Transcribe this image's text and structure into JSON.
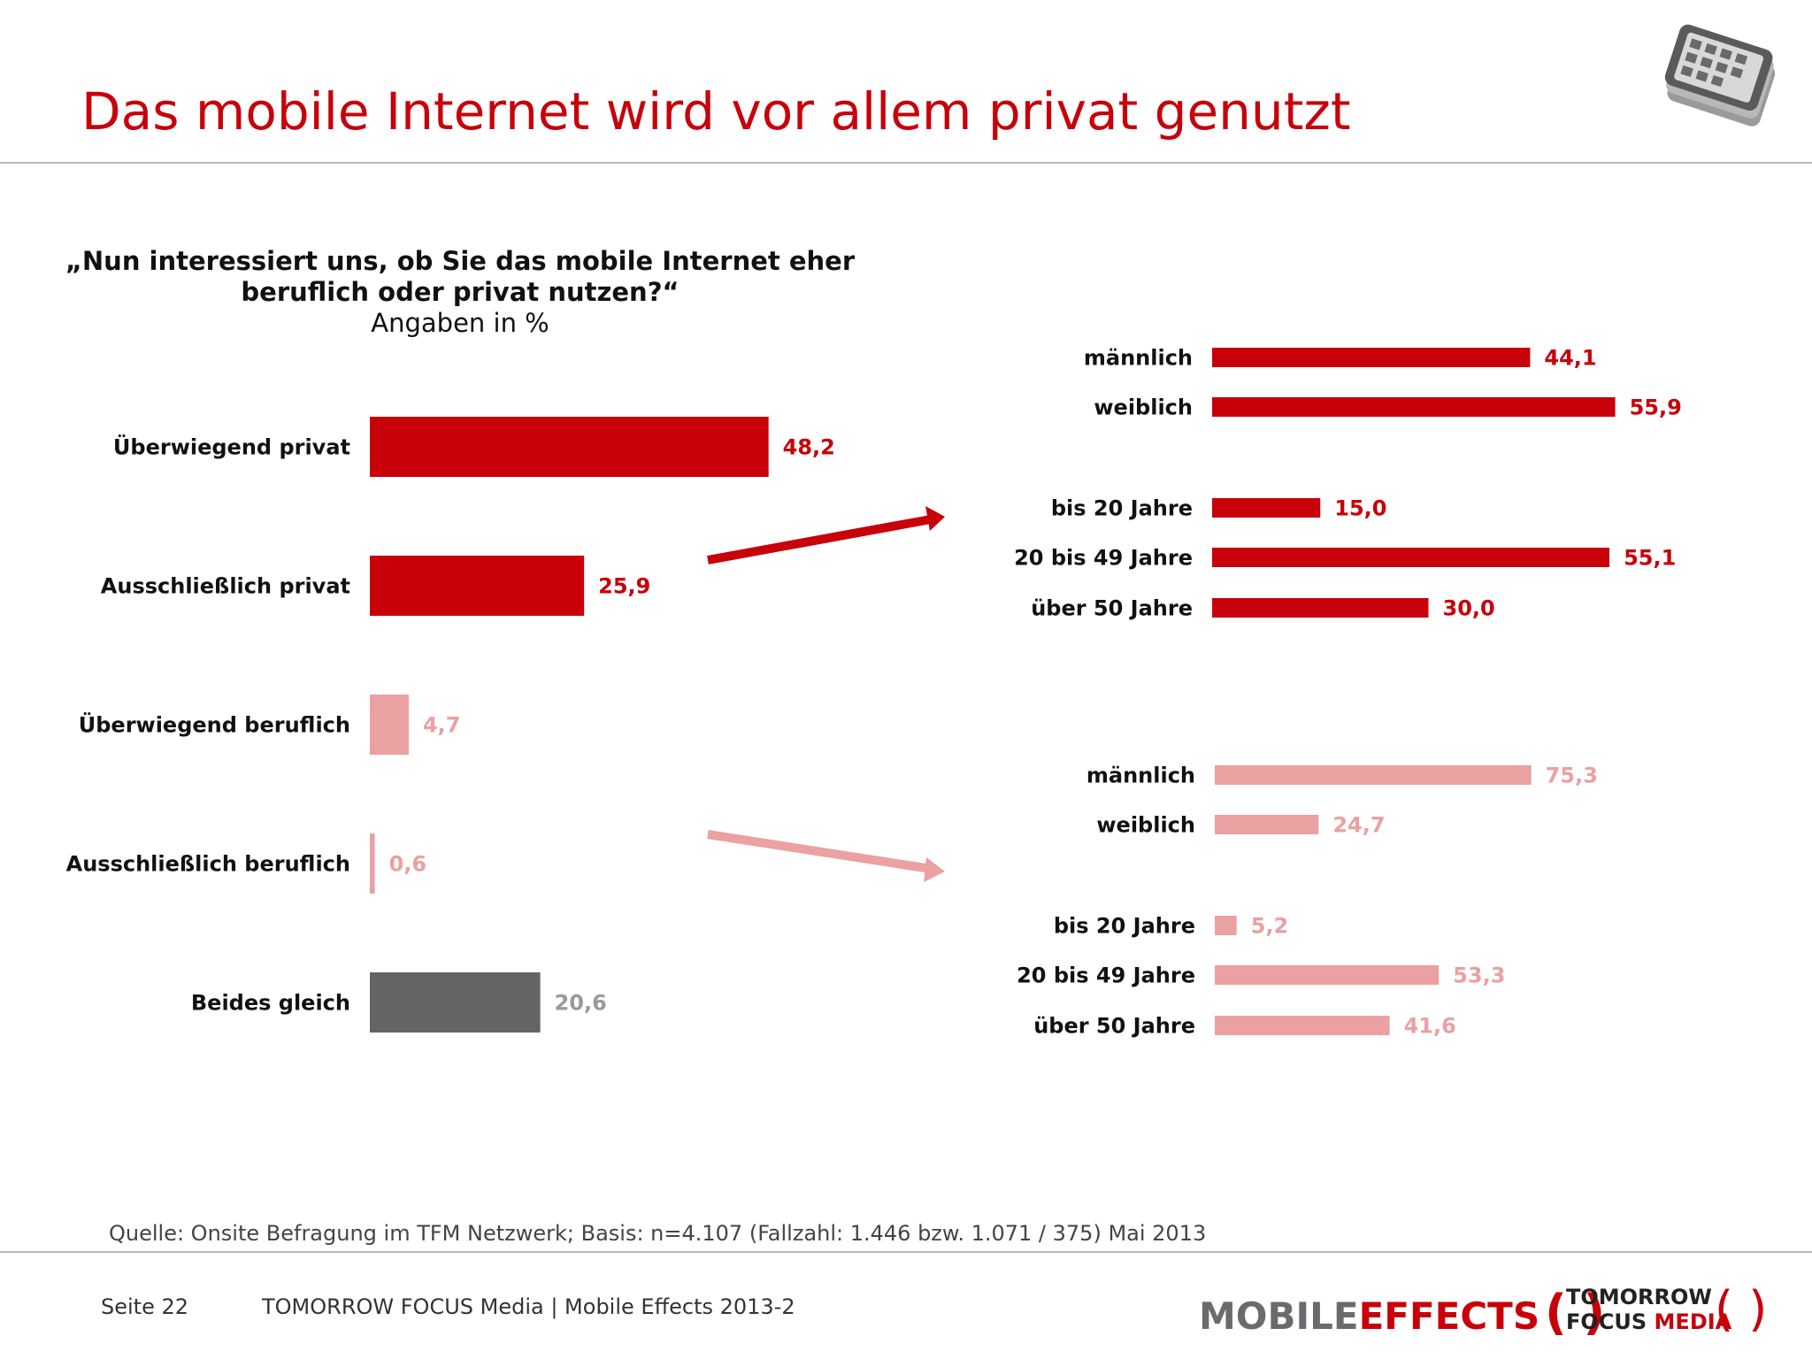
{
  "header": {
    "title": "Das mobile Internet wird vor allem privat genutzt"
  },
  "question": {
    "line1": "„Nun interessiert uns, ob Sie das mobile Internet eher",
    "line2": "beruflich oder privat nutzen?“",
    "units": "Angaben in %"
  },
  "chart_data": [
    {
      "type": "bar",
      "orientation": "horizontal",
      "categories": [
        "Überwiegend privat",
        "Ausschließlich privat",
        "Überwiegend beruflich",
        "Ausschließlich beruflich",
        "Beides gleich"
      ],
      "values": [
        48.2,
        25.9,
        4.7,
        0.6,
        20.6
      ],
      "value_labels": [
        "48,2",
        "25,9",
        "4,7",
        "0,6",
        "20,6"
      ],
      "colors": [
        "#c8000a",
        "#c8000a",
        "#eba0a1",
        "#eba0a1",
        "#646366"
      ],
      "label_colors": [
        "#c8000a",
        "#c8000a",
        "#eba0a1",
        "#eba0a1",
        "#9a9a9a"
      ],
      "xlim": [
        0,
        100
      ]
    },
    {
      "type": "bar",
      "orientation": "horizontal",
      "categories": [
        "männlich",
        "weiblich",
        "bis 20 Jahre",
        "20 bis 49 Jahre",
        "über 50 Jahre"
      ],
      "values": [
        44.1,
        55.9,
        15.0,
        55.1,
        30.0
      ],
      "value_labels": [
        "44,1",
        "55,9",
        "15,0",
        "55,1",
        "30,0"
      ],
      "color": "#c8000a",
      "xlim": [
        0,
        100
      ]
    },
    {
      "type": "bar",
      "orientation": "horizontal",
      "categories": [
        "männlich",
        "weiblich",
        "bis 20 Jahre",
        "20 bis 49 Jahre",
        "über 50 Jahre"
      ],
      "values": [
        75.3,
        24.7,
        5.2,
        53.3,
        41.6
      ],
      "value_labels": [
        "75,3",
        "24,7",
        "5,2",
        "53,3",
        "41,6"
      ],
      "color": "#eba0a1",
      "xlim": [
        0,
        100
      ]
    }
  ],
  "source": "Quelle: Onsite Befragung im TFM Netzwerk; Basis: n=4.107 (Fallzahl: 1.446 bzw. 1.071 / 375) Mai 2013",
  "footer": {
    "page": "Seite 22",
    "company": "TOMORROW FOCUS Media  |  Mobile Effects 2013-2",
    "logo_mobile": "MOBILE",
    "logo_effects": "EFFECTS",
    "logo_tfm_line1": "TOMORROW",
    "logo_tfm_focus": "FOCUS",
    "logo_tfm_media": "MEDIA",
    "logo_mark": "( )"
  },
  "icons": {
    "header_icon": "smartphone-stack-icon",
    "arrow_icon": "arrow-icon"
  },
  "colors": {
    "accent": "#c8000a",
    "light_accent": "#eba0a1",
    "neutral": "#646366"
  }
}
